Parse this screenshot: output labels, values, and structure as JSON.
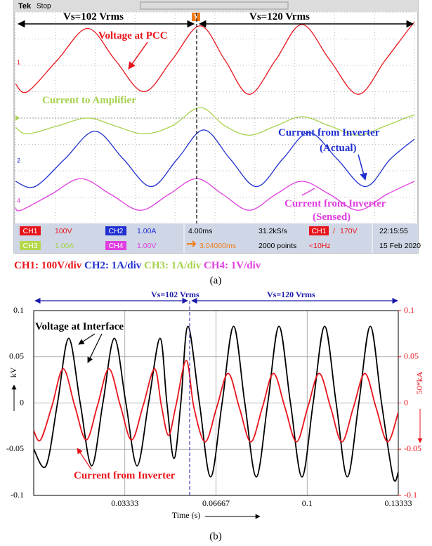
{
  "chart_data": [
    {
      "type": "line",
      "header": {
        "brand": "Tek",
        "state": "Stop",
        "trigger": "T"
      },
      "annotations": {
        "left": "Vs=102 Vrms",
        "right": "Vs=120 Vrms",
        "actual": "(Actual)",
        "sensed": "(Sensed)"
      },
      "channel_markers": [
        "1",
        "2",
        "4"
      ],
      "xlim": [
        0,
        10
      ],
      "ylim": [
        -4,
        4
      ],
      "series": [
        {
          "name": "Voltage at PCC",
          "color": "#e8141b",
          "x": [
            0,
            0.3,
            1.05,
            1.81,
            2.5,
            3.22,
            3.92,
            4.63,
            5.25,
            5.86,
            6.52,
            7.18,
            7.88,
            8.59,
            9.27,
            9.95,
            10
          ],
          "values": [
            1.3,
            1.0,
            2.2,
            3.4,
            2.2,
            1.0,
            2.2,
            3.5,
            2.2,
            0.9,
            2.2,
            3.55,
            2.2,
            0.9,
            2.2,
            3.55,
            3.5
          ]
        },
        {
          "name": "Current to Amplifier",
          "color": "#a6d24e",
          "x": [
            0,
            0.3,
            1.05,
            1.81,
            2.5,
            3.22,
            3.92,
            4.63,
            5.25,
            5.86,
            6.52,
            7.18,
            7.88,
            8.59,
            9.27,
            9.95,
            10
          ],
          "values": [
            -0.35,
            -0.6,
            -0.3,
            0.0,
            -0.3,
            -0.6,
            -0.3,
            0.4,
            -0.3,
            -0.65,
            -0.3,
            0.05,
            -0.3,
            -0.65,
            -0.3,
            0.1,
            0.05
          ]
        },
        {
          "name": "Current from Inverter",
          "color": "#1f2fd0",
          "x": [
            0,
            0.49,
            1.24,
            1.99,
            2.7,
            3.4,
            4.06,
            4.72,
            5.38,
            6.04,
            6.7,
            7.36,
            8.06,
            8.77,
            9.4,
            10
          ],
          "values": [
            -2.4,
            -2.6,
            -1.55,
            -0.5,
            -1.55,
            -2.6,
            -1.55,
            -0.45,
            -1.55,
            -2.6,
            -1.55,
            -0.55,
            -1.55,
            -2.6,
            -1.55,
            -0.8
          ]
        },
        {
          "name": "Current from Inverter",
          "color": "#e03ee0",
          "x": [
            0,
            0.14,
            0.89,
            1.64,
            2.39,
            3.13,
            3.84,
            4.54,
            5.2,
            5.86,
            6.52,
            7.18,
            7.88,
            8.59,
            9.3,
            10
          ],
          "values": [
            -3.4,
            -3.5,
            -2.9,
            -2.3,
            -2.9,
            -3.5,
            -2.9,
            -2.3,
            -2.9,
            -3.5,
            -2.9,
            -2.4,
            -2.9,
            -3.5,
            -2.9,
            -2.4
          ]
        }
      ],
      "status": {
        "ch1": "CH1",
        "ch1_scale": "100V",
        "ch2": "CH2",
        "ch2_scale": "1.00A",
        "ch3": "CH3",
        "ch3_scale": "1.00A",
        "ch4": "CH4",
        "ch4_scale": "1.00V",
        "timebase": "4.00ms",
        "delay": "3.04000ms",
        "rate": "31.2kS/s",
        "points": "2000 points",
        "trig_ch": "CH1",
        "trig_slope": "/",
        "trig_level": "170V",
        "trig_freq": "<10Hz",
        "time": "22:15:55",
        "date": "15 Feb 2020"
      },
      "caption": {
        "ch1": "CH1: 100V/div",
        "ch2": "CH2: 1A/div",
        "ch3": "CH3: 1A/div",
        "ch4": "CH4: 1V/div",
        "label": "(a)"
      }
    },
    {
      "type": "line",
      "x_label": "Time (s)",
      "y_label": "kV",
      "y2_label": "50*kA",
      "annotations": {
        "left": "Vs=102 Vrms",
        "right": "Vs=120 Vrms"
      },
      "caption": "(b)",
      "xlim": [
        0,
        0.13333
      ],
      "xticks": [
        0.03333,
        0.06667,
        0.1,
        0.13333
      ],
      "ylim": [
        -0.1,
        0.1
      ],
      "yticks": [
        -0.1,
        -0.05,
        0,
        0.05,
        0.1
      ],
      "y2lim": [
        -0.1,
        0.1
      ],
      "y2ticks": [
        -0.1,
        -0.05,
        0,
        0.05,
        0.1
      ],
      "grid": true,
      "series": [
        {
          "name": "Voltage at Interface",
          "color": "#000000",
          "x": [
            0,
            0.0045,
            0.0087,
            0.0128,
            0.017,
            0.0212,
            0.0253,
            0.0295,
            0.0337,
            0.0378,
            0.042,
            0.0462,
            0.0487,
            0.0513,
            0.0538,
            0.0564,
            0.0606,
            0.0647,
            0.0689,
            0.0731,
            0.0772,
            0.0814,
            0.0856,
            0.0897,
            0.0939,
            0.0981,
            0.1022,
            0.1064,
            0.1106,
            0.1147,
            0.1189,
            0.1231,
            0.1272,
            0.1314,
            0.13333
          ],
          "values": [
            -0.05,
            -0.068,
            0,
            0.07,
            0,
            -0.068,
            0,
            0.07,
            0,
            -0.068,
            0,
            0.07,
            0,
            -0.06,
            0,
            0.083,
            0,
            -0.08,
            0,
            0.083,
            0,
            -0.08,
            0,
            0.083,
            0,
            -0.08,
            0,
            0.083,
            0,
            -0.08,
            0,
            0.083,
            0,
            -0.08,
            -0.075
          ]
        },
        {
          "name": "Current from Inverter",
          "color": "#e8141b",
          "axis": "y2",
          "x": [
            0,
            0.0025,
            0.0067,
            0.0108,
            0.015,
            0.0192,
            0.0233,
            0.0275,
            0.0317,
            0.0358,
            0.04,
            0.0442,
            0.0467,
            0.0493,
            0.052,
            0.0558,
            0.0586,
            0.0627,
            0.0669,
            0.0711,
            0.0752,
            0.0794,
            0.0836,
            0.0877,
            0.0919,
            0.0961,
            0.1002,
            0.1044,
            0.1086,
            0.1127,
            0.1169,
            0.1211,
            0.1252,
            0.1294,
            0.13333
          ],
          "values": [
            -0.03,
            -0.04,
            -0.003,
            0.037,
            -0.003,
            -0.04,
            -0.003,
            0.037,
            -0.003,
            -0.04,
            -0.003,
            0.037,
            -0.003,
            -0.035,
            -0.003,
            0.046,
            -0.005,
            -0.042,
            -0.005,
            0.032,
            -0.005,
            -0.042,
            -0.005,
            0.032,
            -0.005,
            -0.042,
            -0.005,
            0.032,
            -0.005,
            -0.042,
            -0.005,
            0.032,
            -0.005,
            -0.042,
            -0.01
          ]
        }
      ]
    }
  ]
}
